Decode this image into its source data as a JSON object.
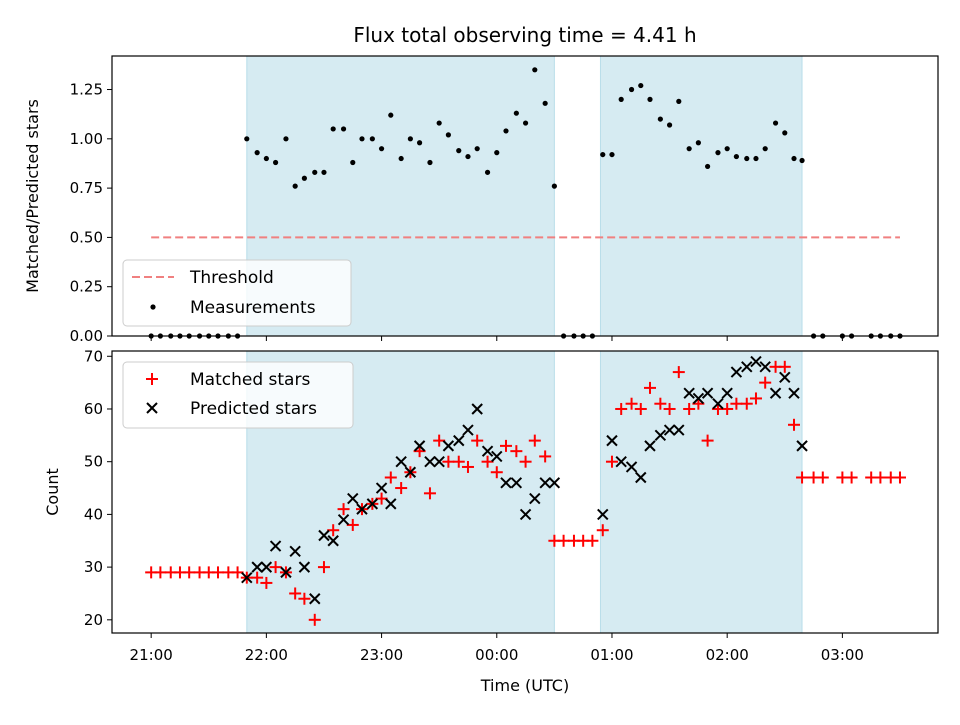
{
  "chart_data": [
    {
      "type": "scatter",
      "title": "Flux total observing time = 4.41 h",
      "xlabel": "",
      "ylabel": "Matched/Predicted stars",
      "xlim": [
        20.66,
        27.83
      ],
      "ylim": [
        0,
        1.42
      ],
      "yticks": [
        0.0,
        0.25,
        0.5,
        0.75,
        1.0,
        1.25
      ],
      "ytick_labels": [
        "0.00",
        "0.25",
        "0.50",
        "0.75",
        "1.00",
        "1.25"
      ],
      "legend_placement": "lower-left",
      "shaded_intervals": [
        [
          21.83,
          24.5
        ],
        [
          24.9,
          26.65
        ]
      ],
      "shade_color": "#add8e6",
      "series": [
        {
          "name": "Threshold",
          "kind": "dashed-line",
          "color": "#f08080",
          "x": [
            21.0,
            24.5,
            27.5
          ],
          "y": [
            0.5,
            0.5,
            0.5
          ]
        },
        {
          "name": "Measurements",
          "kind": "dot",
          "color": "#000000",
          "x": [
            21.0,
            21.08,
            21.17,
            21.25,
            21.33,
            21.42,
            21.5,
            21.58,
            21.67,
            21.75,
            21.83,
            21.92,
            22.0,
            22.08,
            22.17,
            22.25,
            22.33,
            22.42,
            22.5,
            22.58,
            22.67,
            22.75,
            22.83,
            22.92,
            23.0,
            23.08,
            23.17,
            23.25,
            23.33,
            23.42,
            23.5,
            23.58,
            23.67,
            23.75,
            23.83,
            23.92,
            24.0,
            24.08,
            24.17,
            24.25,
            24.33,
            24.42,
            24.5,
            24.58,
            24.67,
            24.75,
            24.83,
            24.92,
            25.0,
            25.08,
            25.17,
            25.25,
            25.33,
            25.42,
            25.5,
            25.58,
            25.67,
            25.75,
            25.83,
            25.92,
            26.0,
            26.08,
            26.17,
            26.25,
            26.33,
            26.42,
            26.5,
            26.58,
            26.65,
            26.75,
            26.83,
            27.0,
            27.08,
            27.25,
            27.33,
            27.42,
            27.5
          ],
          "y": [
            0,
            0,
            0,
            0,
            0,
            0,
            0,
            0,
            0,
            0,
            1.0,
            0.93,
            0.9,
            0.88,
            1.0,
            0.76,
            0.8,
            0.83,
            0.83,
            1.05,
            1.05,
            0.88,
            1.0,
            1.0,
            0.95,
            1.12,
            0.9,
            1.0,
            0.98,
            0.88,
            1.08,
            1.02,
            0.94,
            0.91,
            0.95,
            0.83,
            0.93,
            1.04,
            1.13,
            1.08,
            1.35,
            1.18,
            0.76,
            0,
            0,
            0,
            0,
            0.92,
            0.92,
            1.2,
            1.25,
            1.27,
            1.2,
            1.1,
            1.07,
            1.19,
            0.95,
            0.98,
            0.86,
            0.93,
            0.95,
            0.91,
            0.9,
            0.9,
            0.95,
            1.08,
            1.03,
            0.9,
            0.89,
            0,
            0,
            0,
            0,
            0,
            0,
            0,
            0
          ]
        }
      ]
    },
    {
      "type": "scatter",
      "title": "",
      "xlabel": "Time (UTC)",
      "ylabel": "Count",
      "xlim": [
        20.66,
        27.83
      ],
      "ylim": [
        17.5,
        71
      ],
      "yticks": [
        20,
        30,
        40,
        50,
        60,
        70
      ],
      "ytick_labels": [
        "20",
        "30",
        "40",
        "50",
        "60",
        "70"
      ],
      "xticks": [
        21,
        22,
        23,
        24,
        25,
        26,
        27
      ],
      "xtick_labels": [
        "21:00",
        "22:00",
        "23:00",
        "00:00",
        "01:00",
        "02:00",
        "03:00"
      ],
      "legend_placement": "upper-left",
      "shaded_intervals": [
        [
          21.83,
          24.5
        ],
        [
          24.9,
          26.65
        ]
      ],
      "shade_color": "#add8e6",
      "series": [
        {
          "name": "Matched stars",
          "kind": "plus",
          "color": "#ff0000",
          "x": [
            21.0,
            21.08,
            21.17,
            21.25,
            21.33,
            21.42,
            21.5,
            21.58,
            21.67,
            21.75,
            21.83,
            21.92,
            22.0,
            22.08,
            22.17,
            22.25,
            22.33,
            22.42,
            22.5,
            22.58,
            22.67,
            22.75,
            22.83,
            22.92,
            23.0,
            23.08,
            23.17,
            23.25,
            23.33,
            23.42,
            23.5,
            23.58,
            23.67,
            23.75,
            23.83,
            23.92,
            24.0,
            24.08,
            24.17,
            24.25,
            24.33,
            24.42,
            24.5,
            24.58,
            24.67,
            24.75,
            24.83,
            24.92,
            25.0,
            25.08,
            25.17,
            25.25,
            25.33,
            25.42,
            25.5,
            25.58,
            25.67,
            25.75,
            25.83,
            25.92,
            26.0,
            26.08,
            26.17,
            26.25,
            26.33,
            26.42,
            26.5,
            26.58,
            26.65,
            26.75,
            26.83,
            27.0,
            27.08,
            27.25,
            27.33,
            27.42,
            27.5
          ],
          "y": [
            29,
            29,
            29,
            29,
            29,
            29,
            29,
            29,
            29,
            29,
            28,
            28,
            27,
            30,
            29,
            25,
            24,
            20,
            30,
            37,
            41,
            38,
            41,
            42,
            43,
            47,
            45,
            48,
            52,
            44,
            54,
            50,
            50,
            49,
            54,
            50,
            48,
            53,
            52,
            50,
            54,
            51,
            35,
            35,
            35,
            35,
            35,
            37,
            50,
            60,
            61,
            60,
            64,
            61,
            60,
            67,
            60,
            61,
            54,
            60,
            60,
            61,
            61,
            62,
            65,
            68,
            68,
            57,
            47,
            47,
            47,
            47,
            47,
            47,
            47,
            47,
            47
          ]
        },
        {
          "name": "Predicted stars",
          "kind": "x",
          "color": "#000000",
          "x": [
            21.83,
            21.92,
            22.0,
            22.08,
            22.17,
            22.25,
            22.33,
            22.42,
            22.5,
            22.58,
            22.67,
            22.75,
            22.83,
            22.92,
            23.0,
            23.08,
            23.17,
            23.25,
            23.33,
            23.42,
            23.5,
            23.58,
            23.67,
            23.75,
            23.83,
            23.92,
            24.0,
            24.08,
            24.17,
            24.25,
            24.33,
            24.42,
            24.5,
            24.92,
            25.0,
            25.08,
            25.17,
            25.25,
            25.33,
            25.42,
            25.5,
            25.58,
            25.67,
            25.75,
            25.83,
            25.92,
            26.0,
            26.08,
            26.17,
            26.25,
            26.33,
            26.42,
            26.5,
            26.58,
            26.65
          ],
          "y": [
            28,
            30,
            30,
            34,
            29,
            33,
            30,
            24,
            36,
            35,
            39,
            43,
            41,
            42,
            45,
            42,
            50,
            48,
            53,
            50,
            50,
            53,
            54,
            56,
            60,
            52,
            51,
            46,
            46,
            40,
            43,
            46,
            46,
            40,
            54,
            50,
            49,
            47,
            53,
            55,
            56,
            56,
            63,
            62,
            63,
            61,
            63,
            67,
            68,
            69,
            68,
            63,
            66,
            63,
            53
          ]
        }
      ]
    }
  ]
}
